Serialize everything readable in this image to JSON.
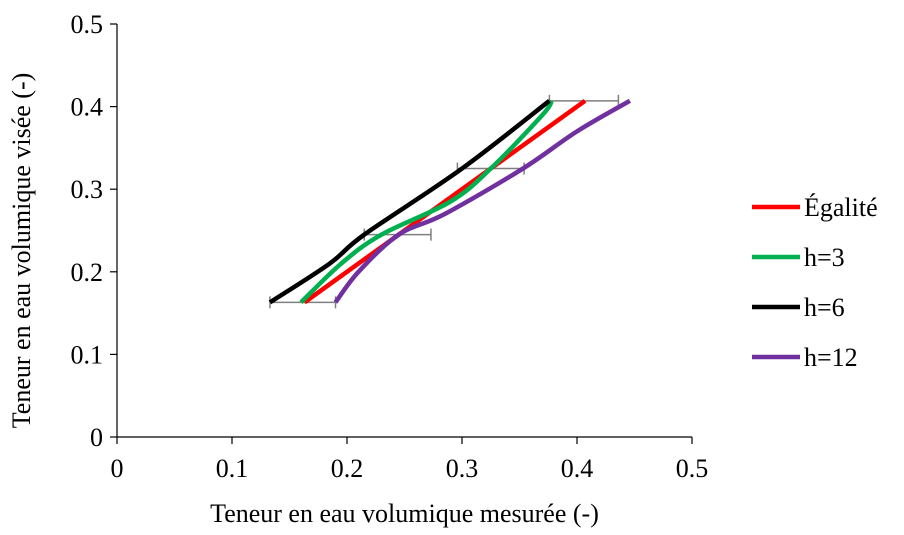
{
  "chart_data": {
    "type": "line",
    "xlabel": "Teneur en eau volumique mesurée (-)",
    "ylabel": "Teneur en eau volumique visée (-)",
    "xlim": [
      0,
      0.5
    ],
    "ylim": [
      0,
      0.5
    ],
    "x_ticks": [
      "0",
      "0.1",
      "0.2",
      "0.3",
      "0.4",
      "0.5"
    ],
    "y_ticks": [
      "0",
      "0.1",
      "0.2",
      "0.3",
      "0.4",
      "0.5"
    ],
    "grid": false,
    "legend_position": "right",
    "series": [
      {
        "name": "Égalité",
        "color": "#ff0000",
        "points": [
          [
            0.163,
            0.163
          ],
          [
            0.245,
            0.245
          ],
          [
            0.325,
            0.325
          ],
          [
            0.407,
            0.407
          ]
        ]
      },
      {
        "name": "h=3",
        "color": "#00b050",
        "points": [
          [
            0.16,
            0.163
          ],
          [
            0.195,
            0.21
          ],
          [
            0.23,
            0.245
          ],
          [
            0.29,
            0.285
          ],
          [
            0.325,
            0.325
          ],
          [
            0.37,
            0.39
          ],
          [
            0.378,
            0.407
          ]
        ]
      },
      {
        "name": "h=6",
        "color": "#000000",
        "points": [
          [
            0.133,
            0.163
          ],
          [
            0.185,
            0.21
          ],
          [
            0.215,
            0.245
          ],
          [
            0.3,
            0.325
          ],
          [
            0.376,
            0.407
          ]
        ]
      },
      {
        "name": "h=12",
        "color": "#7030a0",
        "points": [
          [
            0.19,
            0.163
          ],
          [
            0.21,
            0.2
          ],
          [
            0.245,
            0.245
          ],
          [
            0.285,
            0.27
          ],
          [
            0.353,
            0.325
          ],
          [
            0.4,
            0.37
          ],
          [
            0.446,
            0.407
          ]
        ]
      }
    ],
    "error_bars": [
      {
        "y": 0.163,
        "x_low": 0.133,
        "x_high": 0.19
      },
      {
        "y": 0.245,
        "x_low": 0.215,
        "x_high": 0.273
      },
      {
        "y": 0.325,
        "x_low": 0.296,
        "x_high": 0.354
      },
      {
        "y": 0.407,
        "x_low": 0.376,
        "x_high": 0.436
      }
    ]
  }
}
